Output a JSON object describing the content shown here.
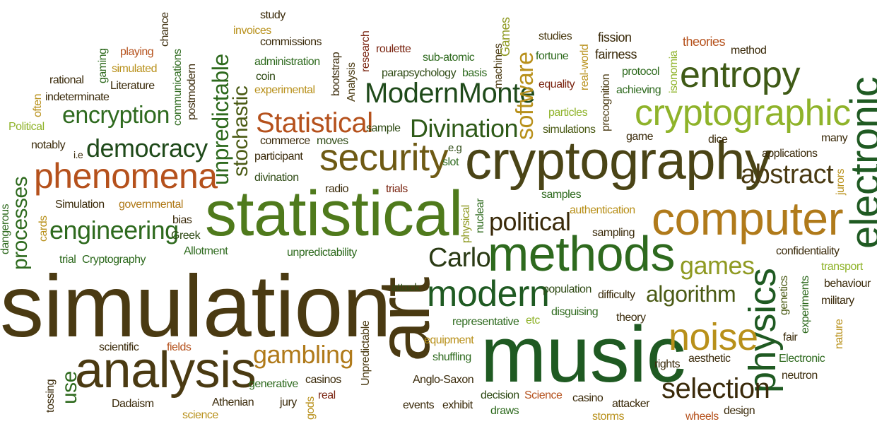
{
  "palette": {
    "dark_green": "#1f5a22",
    "olive": "#6e8a1a",
    "lime": "#8fb32a",
    "brown": "#4a3a12",
    "rust": "#b5511c",
    "dark_red": "#7a2410",
    "gold": "#b8901a",
    "dark_brown": "#3a2a0a"
  },
  "words": [
    {
      "text": "simulation",
      "color": "#4a3a12"
    },
    {
      "text": "art",
      "color": "#4a3a12"
    },
    {
      "text": "music",
      "color": "#1f5a22"
    },
    {
      "text": "statistical",
      "color": "#4f7a1c"
    },
    {
      "text": "cryptography",
      "color": "#4a4416"
    },
    {
      "text": "computer",
      "color": "#b07a1a"
    },
    {
      "text": "methods",
      "color": "#2e6a1e"
    },
    {
      "text": "analysis",
      "color": "#4a3a12"
    },
    {
      "text": "cryptographic",
      "color": "#8fb32a"
    },
    {
      "text": "electronic",
      "color": "#1f5a22"
    },
    {
      "text": "entropy",
      "color": "#3f5a16"
    },
    {
      "text": "physics",
      "color": "#1f5a22"
    },
    {
      "text": "phenomena",
      "color": "#b5511c"
    },
    {
      "text": "security",
      "color": "#6e5a14"
    },
    {
      "text": "modern",
      "color": "#1f5a22"
    },
    {
      "text": "noise",
      "color": "#b8901a"
    },
    {
      "text": "selection",
      "color": "#3a2a0a"
    },
    {
      "text": "ModernMonte",
      "color": "#1f4a1a"
    },
    {
      "text": "Statistical",
      "color": "#b5511c"
    },
    {
      "text": "Divination",
      "color": "#2e5a18"
    },
    {
      "text": "abstract",
      "color": "#4a3a12"
    },
    {
      "text": "political",
      "color": "#3a2a0a"
    },
    {
      "text": "algorithm",
      "color": "#4a5a14"
    },
    {
      "text": "democracy",
      "color": "#1f4a1a"
    },
    {
      "text": "engineering",
      "color": "#2e6a1e"
    },
    {
      "text": "encryption",
      "color": "#2e6a1e"
    },
    {
      "text": "gambling",
      "color": "#b07a1a"
    },
    {
      "text": "games",
      "color": "#8f9a22"
    },
    {
      "text": "Carlo",
      "color": "#2a3a14"
    },
    {
      "text": "software",
      "color": "#b8901a"
    },
    {
      "text": "unpredictable",
      "color": "#2e6a1e"
    },
    {
      "text": "stochastic",
      "color": "#4a5a14"
    },
    {
      "text": "processes",
      "color": "#2e6a1e"
    },
    {
      "text": "use",
      "color": "#2e6a1e"
    },
    {
      "text": "Unpredictable",
      "color": "#4a3a12"
    },
    {
      "text": "study",
      "color": "#3a2a0a"
    },
    {
      "text": "invoices",
      "color": "#b8901a"
    },
    {
      "text": "commissions",
      "color": "#3a2a0a"
    },
    {
      "text": "administration",
      "color": "#2e6a1e"
    },
    {
      "text": "coin",
      "color": "#2e4a14"
    },
    {
      "text": "experimental",
      "color": "#b8901a"
    },
    {
      "text": "research",
      "color": "#7a2410"
    },
    {
      "text": "bootstrap",
      "color": "#3a2a0a"
    },
    {
      "text": "Analysis",
      "color": "#4a3a12"
    },
    {
      "text": "roulette",
      "color": "#7a2410"
    },
    {
      "text": "sub-atomic",
      "color": "#2e6a1e"
    },
    {
      "text": "parapsychology",
      "color": "#2e4a14"
    },
    {
      "text": "basis",
      "color": "#2e6a1e"
    },
    {
      "text": "machines",
      "color": "#4a3a12"
    },
    {
      "text": "Games",
      "color": "#8f9a22"
    },
    {
      "text": "studies",
      "color": "#4a3a12"
    },
    {
      "text": "fortune",
      "color": "#2e6a1e"
    },
    {
      "text": "equality",
      "color": "#7a2410"
    },
    {
      "text": "real-world",
      "color": "#b8901a"
    },
    {
      "text": "fission",
      "color": "#3a2a0a"
    },
    {
      "text": "fairness",
      "color": "#3a2a0a"
    },
    {
      "text": "protocol",
      "color": "#2e6a1e"
    },
    {
      "text": "achieving",
      "color": "#2e6a1e"
    },
    {
      "text": "precognition",
      "color": "#4a3a12"
    },
    {
      "text": "isonomia",
      "color": "#8fb32a"
    },
    {
      "text": "theories",
      "color": "#b5511c"
    },
    {
      "text": "method",
      "color": "#3a2a0a"
    },
    {
      "text": "particles",
      "color": "#8fb32a"
    },
    {
      "text": "simulations",
      "color": "#4a5a14"
    },
    {
      "text": "game",
      "color": "#3a2a0a"
    },
    {
      "text": "dice",
      "color": "#3a2a0a"
    },
    {
      "text": "many",
      "color": "#3a2a0a"
    },
    {
      "text": "applications",
      "color": "#3a2a0a"
    },
    {
      "text": "jurors",
      "color": "#b8901a"
    },
    {
      "text": "sample",
      "color": "#2e4a14"
    },
    {
      "text": "commerce",
      "color": "#3a2a0a"
    },
    {
      "text": "moves",
      "color": "#2e4a14"
    },
    {
      "text": "participant",
      "color": "#3a2a0a"
    },
    {
      "text": "divination",
      "color": "#2e4a14"
    },
    {
      "text": "radio",
      "color": "#3a2a0a"
    },
    {
      "text": "trials",
      "color": "#7a2410"
    },
    {
      "text": "e.g",
      "color": "#2e4a14"
    },
    {
      "text": "slot",
      "color": "#2e6a1e"
    },
    {
      "text": "physical",
      "color": "#8f9a22"
    },
    {
      "text": "nuclear",
      "color": "#2e6a1e"
    },
    {
      "text": "samples",
      "color": "#2e6a1e"
    },
    {
      "text": "authentication",
      "color": "#b8901a"
    },
    {
      "text": "sampling",
      "color": "#3a2a0a"
    },
    {
      "text": "confidentiality",
      "color": "#3a2a0a"
    },
    {
      "text": "transport",
      "color": "#8fb32a"
    },
    {
      "text": "genetics",
      "color": "#4a5a14"
    },
    {
      "text": "experiments",
      "color": "#2e6a1e"
    },
    {
      "text": "behaviour",
      "color": "#3a2a0a"
    },
    {
      "text": "military",
      "color": "#3a2a0a"
    },
    {
      "text": "nature",
      "color": "#b8901a"
    },
    {
      "text": "population",
      "color": "#2e4a14"
    },
    {
      "text": "difficulty",
      "color": "#3a2a0a"
    },
    {
      "text": "theory",
      "color": "#3a2a0a"
    },
    {
      "text": "disguising",
      "color": "#2e6a1e"
    },
    {
      "text": "representative",
      "color": "#2e6a1e"
    },
    {
      "text": "etc",
      "color": "#8fb32a"
    },
    {
      "text": "equipment",
      "color": "#b8901a"
    },
    {
      "text": "shuffling",
      "color": "#2e6a1e"
    },
    {
      "text": "Anglo-Saxon",
      "color": "#3a2a0a"
    },
    {
      "text": "decision",
      "color": "#2e4a14"
    },
    {
      "text": "draws",
      "color": "#2e6a1e"
    },
    {
      "text": "Science",
      "color": "#b5511c"
    },
    {
      "text": "casino",
      "color": "#3a2a0a"
    },
    {
      "text": "storms",
      "color": "#b8901a"
    },
    {
      "text": "attacker",
      "color": "#3a2a0a"
    },
    {
      "text": "wheels",
      "color": "#b5511c"
    },
    {
      "text": "design",
      "color": "#3a2a0a"
    },
    {
      "text": "fair",
      "color": "#3a2a0a"
    },
    {
      "text": "rights",
      "color": "#3a2a0a"
    },
    {
      "text": "aesthetic",
      "color": "#3a2a0a"
    },
    {
      "text": "Electronic",
      "color": "#2e6a1e"
    },
    {
      "text": "neutron",
      "color": "#3a2a0a"
    },
    {
      "text": "events",
      "color": "#3a2a0a"
    },
    {
      "text": "exhibit",
      "color": "#3a2a0a"
    },
    {
      "text": "attack",
      "color": "#2e4a14"
    },
    {
      "text": "unpredictability",
      "color": "#2e6a1e"
    },
    {
      "text": "Allotment",
      "color": "#2e6a1e"
    },
    {
      "text": "Greek",
      "color": "#2e4a14"
    },
    {
      "text": "bias",
      "color": "#3a2a0a"
    },
    {
      "text": "trial",
      "color": "#2e6a1e"
    },
    {
      "text": "Cryptography",
      "color": "#2e6a1e"
    },
    {
      "text": "Simulation",
      "color": "#3a2a0a"
    },
    {
      "text": "governmental",
      "color": "#b07a1a"
    },
    {
      "text": "cards",
      "color": "#b8901a"
    },
    {
      "text": "dangerous",
      "color": "#2e6a1e"
    },
    {
      "text": "notably",
      "color": "#3a2a0a"
    },
    {
      "text": "i.e",
      "color": "#3a2a0a"
    },
    {
      "text": "Political",
      "color": "#8fb32a"
    },
    {
      "text": "often",
      "color": "#b8901a"
    },
    {
      "text": "indeterminate",
      "color": "#3a2a0a"
    },
    {
      "text": "rational",
      "color": "#3a2a0a"
    },
    {
      "text": "gaming",
      "color": "#2e6a1e"
    },
    {
      "text": "playing",
      "color": "#b5511c"
    },
    {
      "text": "simulated",
      "color": "#b8901a"
    },
    {
      "text": "Literature",
      "color": "#3a2a0a"
    },
    {
      "text": "chance",
      "color": "#3a2a0a"
    },
    {
      "text": "communications",
      "color": "#2e6a1e"
    },
    {
      "text": "postmodern",
      "color": "#3a2a0a"
    },
    {
      "text": "scientific",
      "color": "#3a2a0a"
    },
    {
      "text": "fields",
      "color": "#b5511c"
    },
    {
      "text": "tossing",
      "color": "#3a2a0a"
    },
    {
      "text": "Dadaism",
      "color": "#3a2a0a"
    },
    {
      "text": "Athenian",
      "color": "#3a2a0a"
    },
    {
      "text": "science",
      "color": "#b8901a"
    },
    {
      "text": "generative",
      "color": "#2e6a1e"
    },
    {
      "text": "casinos",
      "color": "#3a2a0a"
    },
    {
      "text": "jury",
      "color": "#3a2a0a"
    },
    {
      "text": "gods",
      "color": "#b8901a"
    },
    {
      "text": "real",
      "color": "#7a2410"
    }
  ]
}
